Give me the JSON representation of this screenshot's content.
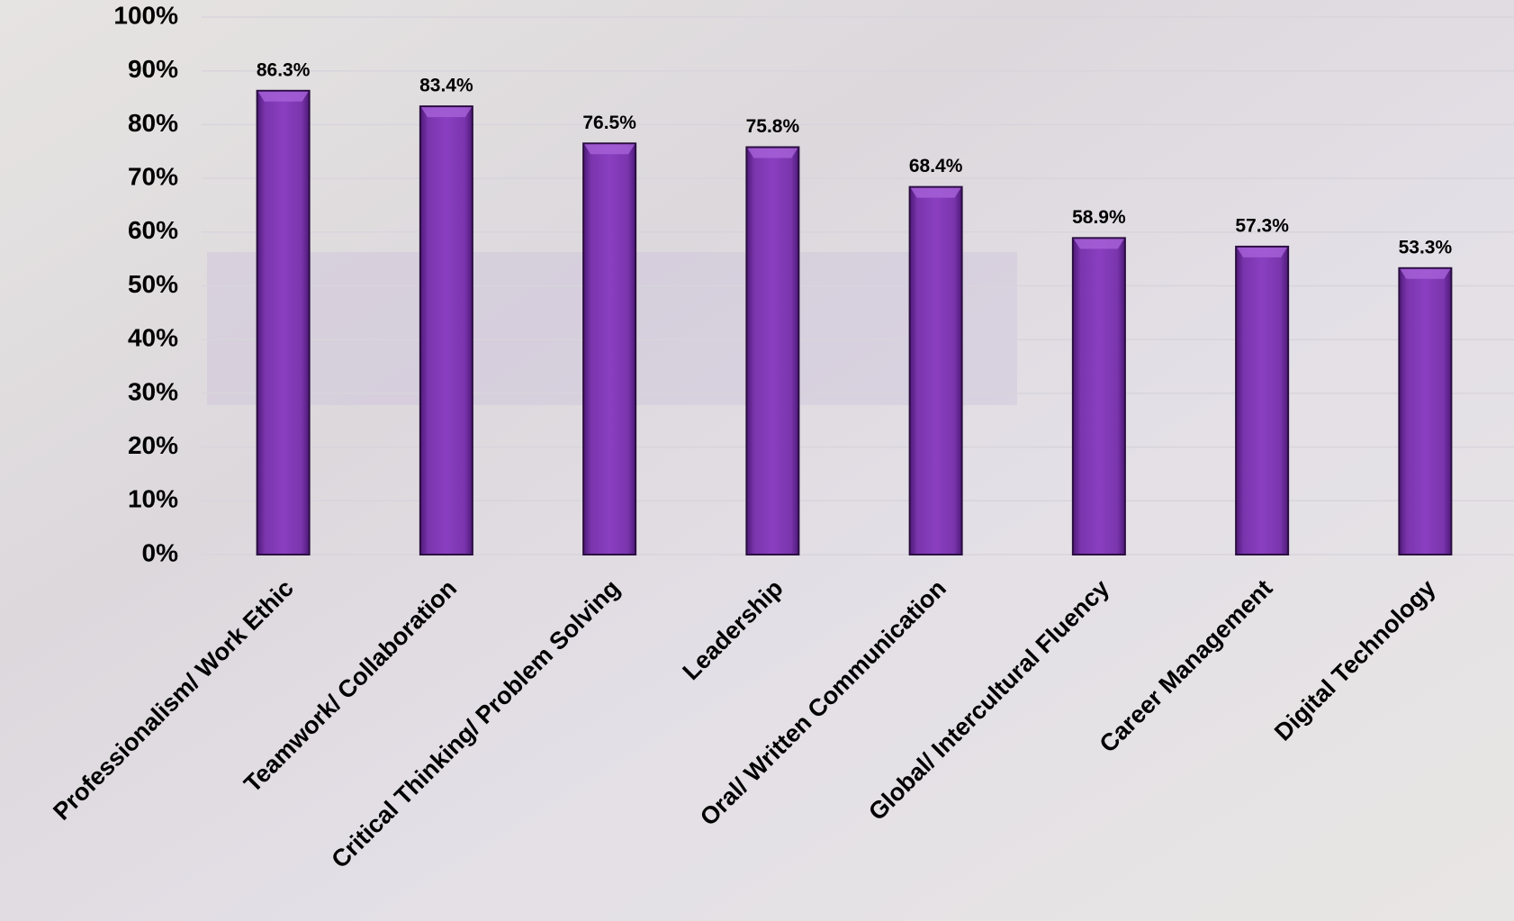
{
  "chart_data": {
    "type": "bar",
    "categories": [
      "Professionalism/ Work Ethic",
      "Teamwork/ Collaboration",
      "Critical Thinking/ Problem Solving",
      "Leadership",
      "Oral/ Written Communication",
      "Global/ Intercultural Fluency",
      "Career Management",
      "Digital Technology"
    ],
    "values": [
      86.3,
      83.4,
      76.5,
      75.8,
      68.4,
      58.9,
      57.3,
      53.3
    ],
    "value_labels": [
      "86.3%",
      "83.4%",
      "76.5%",
      "75.8%",
      "68.4%",
      "58.9%",
      "57.3%",
      "53.3%"
    ],
    "color": "#7030a0",
    "ylim": [
      0,
      100
    ],
    "yticks": [
      {
        "value": 0,
        "label": "0%"
      },
      {
        "value": 10,
        "label": "10%"
      },
      {
        "value": 20,
        "label": "20%"
      },
      {
        "value": 30,
        "label": "30%"
      },
      {
        "value": 40,
        "label": "40%"
      },
      {
        "value": 50,
        "label": "50%"
      },
      {
        "value": 60,
        "label": "60%"
      },
      {
        "value": 70,
        "label": "70%"
      },
      {
        "value": 80,
        "label": "80%"
      },
      {
        "value": 90,
        "label": "90%"
      },
      {
        "value": 100,
        "label": "100%"
      }
    ],
    "grid": true
  }
}
